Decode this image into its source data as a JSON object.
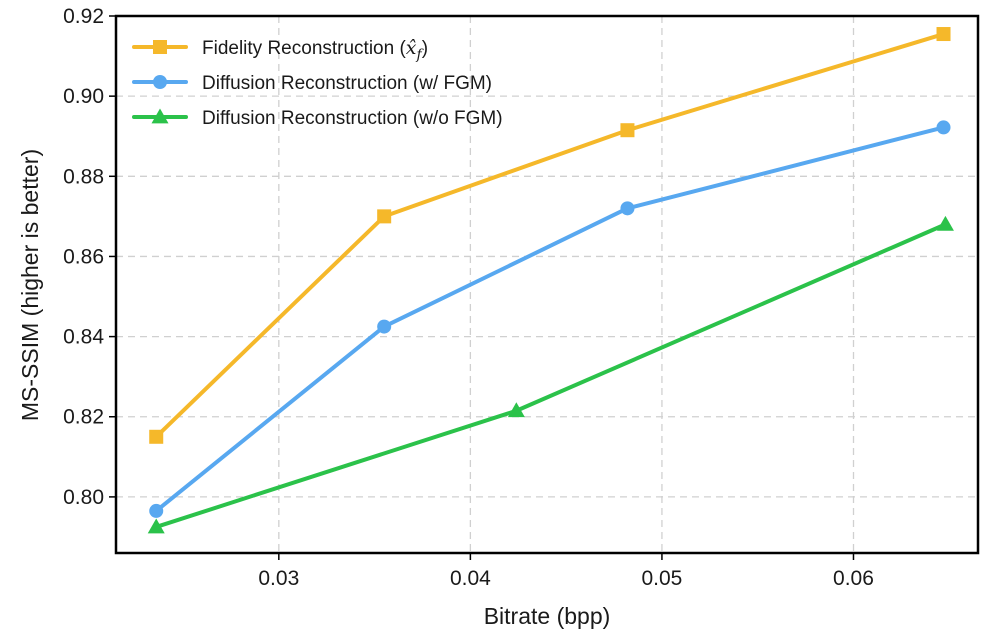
{
  "chart_data": {
    "type": "line",
    "xlabel": "Bitrate (bpp)",
    "ylabel": "MS-SSIM (higher is better)",
    "xlim": [
      0.0215,
      0.0665
    ],
    "ylim": [
      0.786,
      0.92
    ],
    "x_ticks": [
      0.03,
      0.04,
      0.05,
      0.06
    ],
    "x_tick_labels": [
      "0.03",
      "0.04",
      "0.05",
      "0.06"
    ],
    "y_ticks": [
      0.8,
      0.82,
      0.84,
      0.86,
      0.88,
      0.9,
      0.92
    ],
    "y_tick_labels": [
      "0.80",
      "0.82",
      "0.84",
      "0.86",
      "0.88",
      "0.90",
      "0.92"
    ],
    "grid": true,
    "legend_position": "top-left",
    "series": [
      {
        "name": "Fidelity Reconstruction (x̂_f)",
        "legend_label": "Fidelity Reconstruction (",
        "legend_math": "x̂",
        "legend_math_sub": "f",
        "legend_suffix": ")",
        "color": "#F5B82A",
        "marker": "square",
        "x": [
          0.0236,
          0.0355,
          0.0482,
          0.0647
        ],
        "y": [
          0.815,
          0.87,
          0.8915,
          0.9155
        ]
      },
      {
        "name": "Diffusion Reconstruction (w/ FGM)",
        "legend_label": "Diffusion Reconstruction (w/ FGM)",
        "color": "#58A8F0",
        "marker": "circle",
        "x": [
          0.0236,
          0.0355,
          0.0482,
          0.0647
        ],
        "y": [
          0.7965,
          0.8425,
          0.872,
          0.8922
        ]
      },
      {
        "name": "Diffusion Reconstruction (w/o FGM)",
        "legend_label": "Diffusion Reconstruction (w/o FGM)",
        "color": "#2BC24A",
        "marker": "triangle",
        "x": [
          0.0236,
          0.0424,
          0.0648
        ],
        "y": [
          0.7925,
          0.8215,
          0.868
        ]
      }
    ]
  }
}
